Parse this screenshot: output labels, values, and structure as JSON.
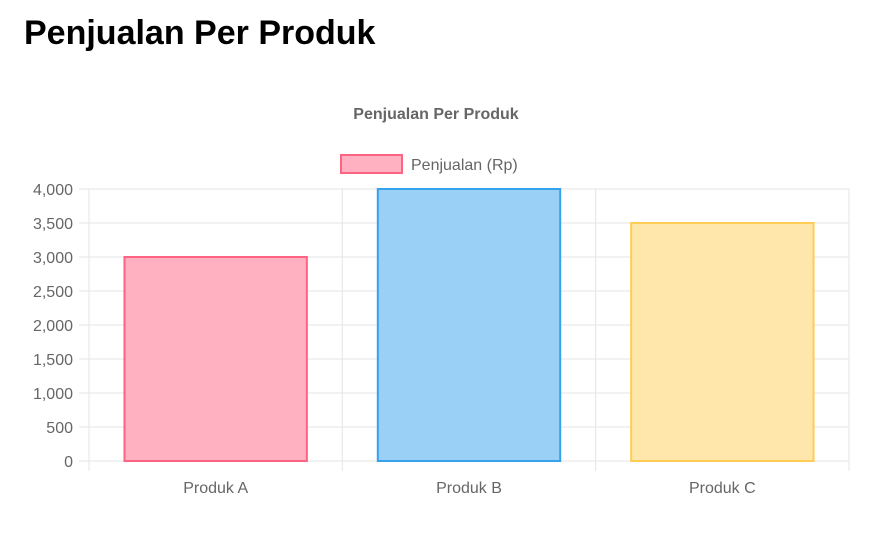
{
  "page": {
    "heading": "Penjualan Per Produk"
  },
  "chart_data": {
    "type": "bar",
    "title": "Penjualan Per Produk",
    "categories": [
      "Produk A",
      "Produk B",
      "Produk C"
    ],
    "series": [
      {
        "name": "Penjualan (Rp)",
        "values": [
          3000,
          4000,
          3500
        ]
      }
    ],
    "ylim": [
      0,
      4000
    ],
    "yticks": [
      "4,000",
      "3,500",
      "3,000",
      "2,500",
      "2,000",
      "1,500",
      "1,000",
      "500",
      "0"
    ],
    "ytick_values": [
      4000,
      3500,
      3000,
      2500,
      2000,
      1500,
      1000,
      500,
      0
    ],
    "grid": true,
    "legend_position": "top",
    "bar_fills": [
      "#ffb1c1",
      "#9ad0f5",
      "#ffe6aa"
    ],
    "bar_borders": [
      "#ff6384",
      "#36a2eb",
      "#ffcd56"
    ],
    "legend_fill": "#ffb1c1",
    "legend_border": "#ff6384",
    "grid_color": "#e5e5e5",
    "text_color": "#666666"
  }
}
